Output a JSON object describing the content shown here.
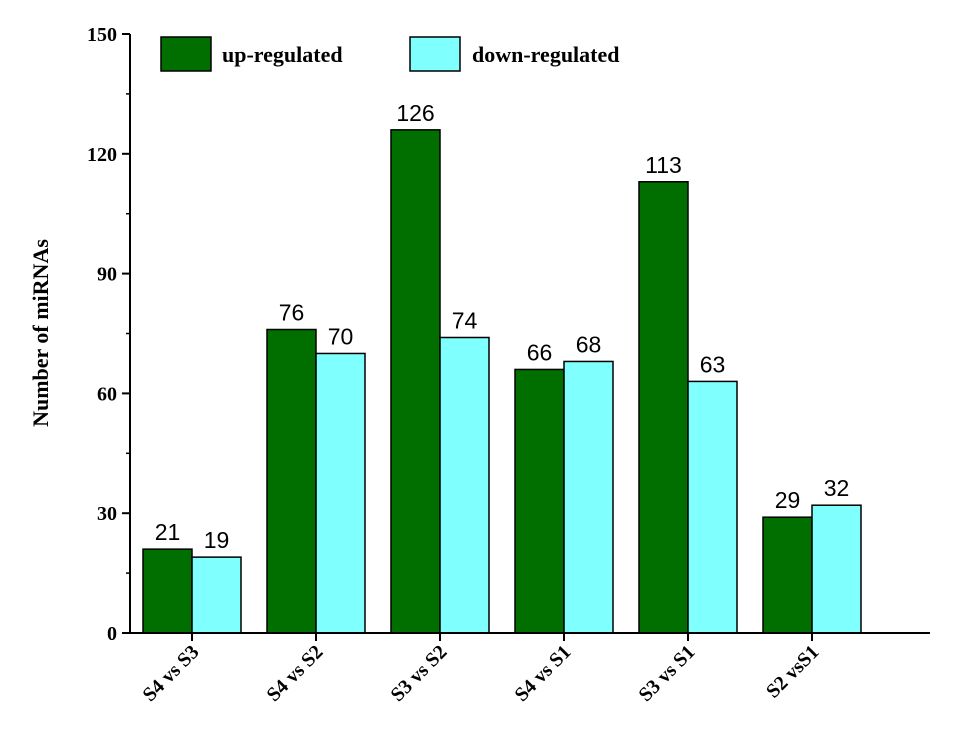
{
  "chart_data": {
    "type": "bar",
    "categories": [
      "S4 vs S3",
      "S4 vs S2",
      "S3 vs S2",
      "S4 vs S1",
      "S3 vs S1",
      "S2 vsS1"
    ],
    "series": [
      {
        "name": "up-regulated",
        "values": [
          21,
          76,
          126,
          66,
          113,
          29
        ],
        "color": "#006f00"
      },
      {
        "name": "down-regulated",
        "values": [
          19,
          70,
          74,
          68,
          63,
          32
        ],
        "color": "#80ffff"
      }
    ],
    "ylabel": "Number of miRNAs",
    "xlabel": "",
    "ylim": [
      0,
      150
    ],
    "yticks": [
      0,
      30,
      60,
      90,
      120,
      150
    ],
    "legend_position": "top-left",
    "grid": false
  }
}
